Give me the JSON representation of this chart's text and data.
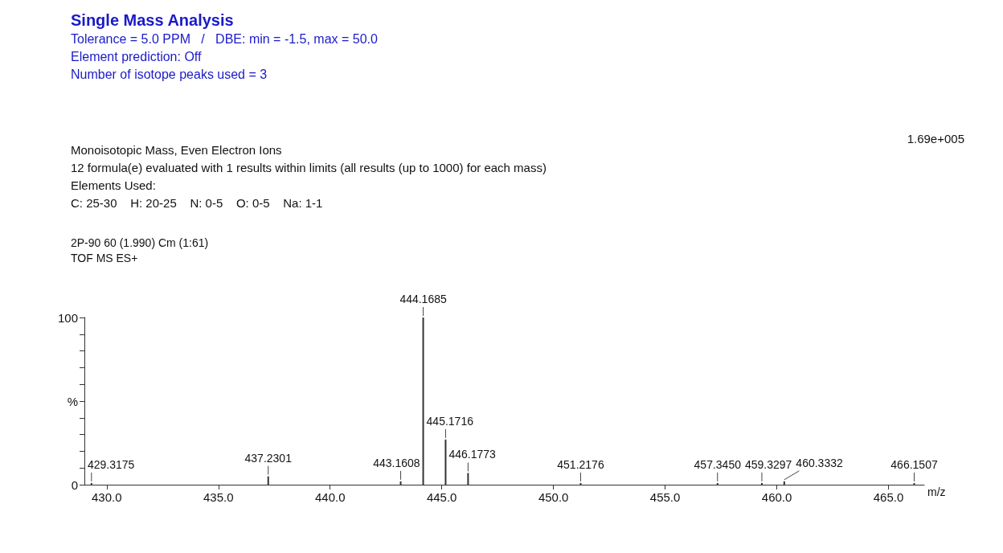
{
  "chart_data": {
    "type": "bar",
    "title": "Single Mass Analysis",
    "subtitle": "Tolerance = 5.0 PPM   /   DBE: min = -1.5, max = 50.0\nElement prediction: Off\nNumber of isotope peaks used = 3",
    "annotations": [
      "Monoisotopic Mass, Even Electron Ions",
      "12 formula(e) evaluated with 1 results within limits (all results (up to 1000) for each mass)",
      "Elements Used:",
      "C: 25-30    H: 20-25    N: 0-5    O: 0-5    Na: 1-1",
      "2P-90 60 (1.990) Cm (1:61)",
      "TOF MS ES+",
      "1.69e+005",
      {
        "text": "429.3175",
        "x": 429.3175,
        "y": 1
      },
      {
        "text": "437.2301",
        "x": 437.2301,
        "y": 5
      },
      {
        "text": "443.1608",
        "x": 443.1608,
        "y": 2
      },
      {
        "text": "444.1685",
        "x": 444.1685,
        "y": 100
      },
      {
        "text": "445.1716",
        "x": 445.1716,
        "y": 27
      },
      {
        "text": "446.1773",
        "x": 446.1773,
        "y": 7
      },
      {
        "text": "451.2176",
        "x": 451.2176,
        "y": 1
      },
      {
        "text": "457.3450",
        "x": 457.345,
        "y": 1
      },
      {
        "text": "459.3297",
        "x": 459.3297,
        "y": 1
      },
      {
        "text": "460.3332",
        "x": 460.3332,
        "y": 2
      },
      {
        "text": "466.1507",
        "x": 466.1507,
        "y": 1
      }
    ],
    "xlabel": "m/z",
    "x": [
      429.3175,
      437.2301,
      443.1608,
      444.1685,
      445.1716,
      446.1773,
      451.2176,
      457.345,
      459.3297,
      460.3332,
      466.1507
    ],
    "values": [
      1,
      5,
      2,
      100,
      27,
      7,
      1,
      1,
      1,
      2,
      1
    ],
    "color": "#333333",
    "xlim": [
      429,
      466.6
    ],
    "xticks": [
      {
        "value": 430,
        "label": "430.0"
      },
      {
        "value": 435,
        "label": "435.0"
      },
      {
        "value": 440,
        "label": "440.0"
      },
      {
        "value": 445,
        "label": "445.0"
      },
      {
        "value": 450,
        "label": "450.0"
      },
      {
        "value": 455,
        "label": "455.0"
      },
      {
        "value": 460,
        "label": "460.0"
      },
      {
        "value": 465,
        "label": "465.0"
      }
    ],
    "ylim": [
      0,
      100
    ],
    "yticks": [
      0,
      {
        "value": 10,
        "label": null
      },
      {
        "value": 20,
        "label": null
      },
      {
        "value": 30,
        "label": null
      },
      {
        "value": 40,
        "label": null
      },
      {
        "value": 50,
        "label": "%"
      },
      {
        "value": 60,
        "label": null
      },
      {
        "value": 70,
        "label": null
      },
      {
        "value": 80,
        "label": null
      },
      {
        "value": 90,
        "label": null
      },
      100
    ],
    "grid": false
  }
}
